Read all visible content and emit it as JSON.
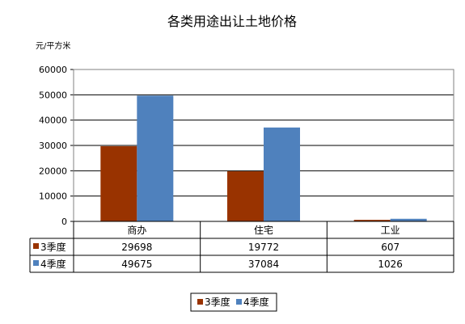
{
  "chart_data": {
    "type": "bar",
    "title": "各类用途出让土地价格",
    "ylabel": "元/平方米",
    "xlabel": "",
    "categories": [
      "商办",
      "住宅",
      "工业"
    ],
    "series": [
      {
        "name": "3季度",
        "values": [
          29698,
          19772,
          607
        ],
        "color": "#993300"
      },
      {
        "name": "4季度",
        "values": [
          49675,
          37084,
          1026
        ],
        "color": "#4F81BD"
      }
    ],
    "ylim": [
      0,
      60000
    ],
    "yticks": [
      "0",
      "10000",
      "20000",
      "30000",
      "40000",
      "50000",
      "60000"
    ],
    "grid": true,
    "legend": "bottom",
    "data_table": true,
    "plot_border_color": "#808080",
    "grid_color": "#000000"
  }
}
